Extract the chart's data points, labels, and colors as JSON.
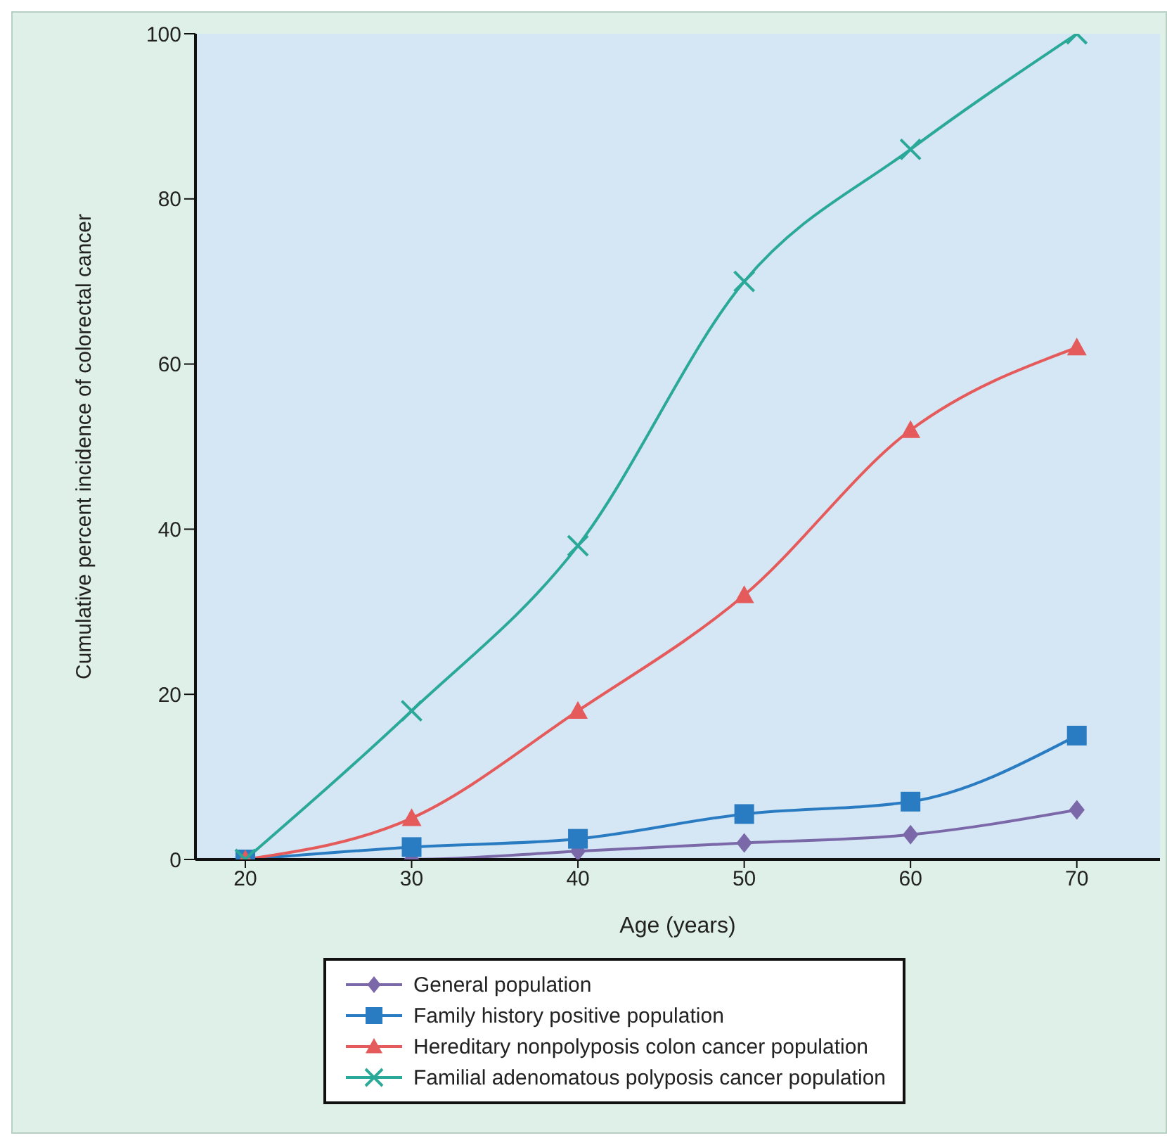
{
  "chart_data": {
    "type": "line",
    "xlabel": "Age (years)",
    "ylabel": "Cumulative percent incidence of colorectal cancer",
    "x": [
      20,
      30,
      40,
      50,
      60,
      70
    ],
    "xlim": [
      17,
      75
    ],
    "xticks": [
      20,
      30,
      40,
      50,
      60,
      70
    ],
    "ylim": [
      0,
      100
    ],
    "yticks": [
      0,
      20,
      40,
      60,
      80,
      100
    ],
    "grid": false,
    "legend": "bottom",
    "line_style": "solid",
    "series": [
      {
        "name": "General population",
        "color": "#7b68a8",
        "marker": "diamond",
        "values": [
          0,
          0,
          1,
          2,
          3,
          6
        ]
      },
      {
        "name": "Family history positive population",
        "color": "#2a7cc2",
        "marker": "square",
        "values": [
          0,
          1.5,
          2.5,
          5.5,
          7,
          15
        ]
      },
      {
        "name": "Hereditary nonpolyposis colon cancer population",
        "color": "#e55a5a",
        "marker": "triangle",
        "values": [
          0,
          5,
          18,
          32,
          52,
          62
        ]
      },
      {
        "name": "Familial adenomatous polyposis cancer population",
        "color": "#2aa898",
        "marker": "cross",
        "values": [
          0,
          18,
          38,
          70,
          86,
          100
        ]
      }
    ]
  }
}
